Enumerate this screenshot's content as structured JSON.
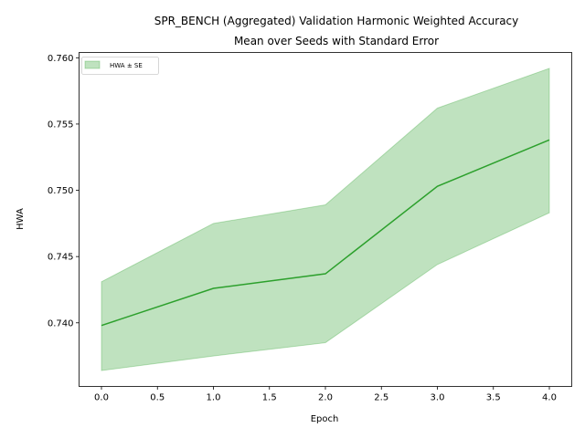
{
  "chart_data": {
    "type": "line",
    "title_line1": "SPR_BENCH (Aggregated) Validation Harmonic Weighted Accuracy",
    "title_line2": "Mean over Seeds with Standard Error",
    "xlabel": "Epoch",
    "ylabel": "HWA",
    "x": [
      0,
      1,
      2,
      3,
      4
    ],
    "series": [
      {
        "mean": [
          0.7398,
          0.7426,
          0.7437,
          0.7503,
          0.7538
        ],
        "lower": [
          0.7364,
          0.7375,
          0.7385,
          0.7444,
          0.7483
        ],
        "upper": [
          0.7431,
          0.7475,
          0.7489,
          0.7562,
          0.7592
        ],
        "line_color": "#2ca02c",
        "band_color": "#2ca02c"
      }
    ],
    "legend_entry": "HWA ± SE",
    "legend_position": "top-left",
    "xlim": [
      -0.2,
      4.2
    ],
    "ylim": [
      0.7352,
      0.7604
    ],
    "xticks": [
      "0.0",
      "0.5",
      "1.0",
      "1.5",
      "2.0",
      "2.5",
      "3.0",
      "3.5",
      "4.0"
    ],
    "yticks": [
      "0.740",
      "0.745",
      "0.750",
      "0.755",
      "0.760"
    ],
    "grid": false
  }
}
